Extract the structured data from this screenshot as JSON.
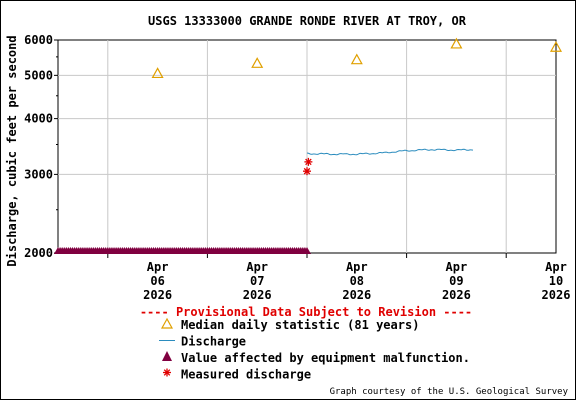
{
  "chart_data": {
    "type": "scatter",
    "title": "USGS 13333000 GRANDE RONDE RIVER AT TROY, OR",
    "ylabel": "Discharge, cubic feet per second",
    "xlabel": "",
    "y_scale": "log",
    "ylim": [
      2000,
      6000
    ],
    "xlim": [
      "2026-04-05T12:00",
      "2026-04-10T12:00"
    ],
    "grid": true,
    "y_ticks": [
      {
        "value": 2000,
        "label": "2000"
      },
      {
        "value": 3000,
        "label": "3000"
      },
      {
        "value": 4000,
        "label": "4000"
      },
      {
        "value": 5000,
        "label": "5000"
      },
      {
        "value": 6000,
        "label": "6000"
      }
    ],
    "x_ticks": [
      {
        "value": "2026-04-06T12:00",
        "line1": "Apr",
        "line2": "06",
        "line3": "2026"
      },
      {
        "value": "2026-04-07T12:00",
        "line1": "Apr",
        "line2": "07",
        "line3": "2026"
      },
      {
        "value": "2026-04-08T12:00",
        "line1": "Apr",
        "line2": "08",
        "line3": "2026"
      },
      {
        "value": "2026-04-09T12:00",
        "line1": "Apr",
        "line2": "09",
        "line3": "2026"
      },
      {
        "value": "2026-04-10T12:00",
        "line1": "Apr",
        "line2": "10",
        "line3": "2026"
      }
    ],
    "provisional_note": "---- Provisional Data Subject to Revision ----",
    "credit": "Graph courtesy of the U.S. Geological Survey",
    "legend": [
      {
        "label": "Median daily statistic (81 years)",
        "marker": "triangle-open",
        "color": "#e0a000"
      },
      {
        "label": "Discharge",
        "marker": "line",
        "color": "#2b8cbe"
      },
      {
        "label": "Value affected by equipment malfunction.",
        "marker": "triangle-filled",
        "color": "#800040"
      },
      {
        "label": "Measured discharge",
        "marker": "asterisk",
        "color": "#e00000"
      }
    ],
    "series": [
      {
        "name": "Median daily statistic (81 years)",
        "color": "#e0a000",
        "points": [
          {
            "x": "2026-04-06T12:00",
            "y": 5050
          },
          {
            "x": "2026-04-07T12:00",
            "y": 5320
          },
          {
            "x": "2026-04-08T12:00",
            "y": 5420
          },
          {
            "x": "2026-04-09T12:00",
            "y": 5880
          },
          {
            "x": "2026-04-10T12:00",
            "y": 5780
          }
        ]
      },
      {
        "name": "Discharge",
        "color": "#2b8cbe",
        "start": "2026-04-08T00:00",
        "end": "2026-04-09T16:00",
        "step_minutes": 15,
        "anchors": [
          {
            "x": "2026-04-08T00:00",
            "y": 3340
          },
          {
            "x": "2026-04-08T06:00",
            "y": 3330
          },
          {
            "x": "2026-04-08T12:00",
            "y": 3330
          },
          {
            "x": "2026-04-08T18:00",
            "y": 3350
          },
          {
            "x": "2026-04-09T00:00",
            "y": 3390
          },
          {
            "x": "2026-04-09T06:00",
            "y": 3410
          },
          {
            "x": "2026-04-09T12:00",
            "y": 3400
          },
          {
            "x": "2026-04-09T16:00",
            "y": 3410
          }
        ]
      },
      {
        "name": "Value affected by equipment malfunction.",
        "color": "#800040",
        "start": "2026-04-05T12:00",
        "end": "2026-04-08T00:00",
        "step_minutes": 30,
        "y": 2000
      },
      {
        "name": "Measured discharge",
        "color": "#e00000",
        "points": [
          {
            "x": "2026-04-08T00:00",
            "y": 3050
          },
          {
            "x": "2026-04-08T00:20",
            "y": 3200
          }
        ]
      }
    ]
  }
}
